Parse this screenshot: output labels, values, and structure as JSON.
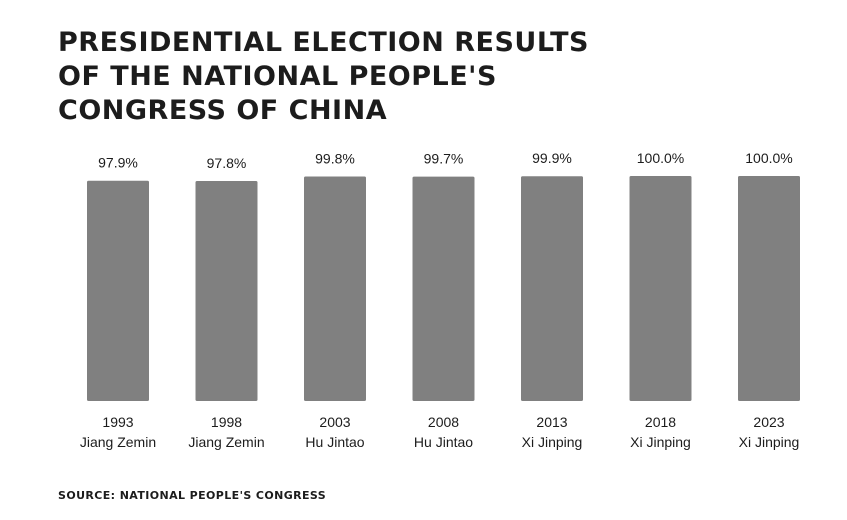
{
  "title_lines": [
    "PRESIDENTIAL ELECTION RESULTS",
    "OF THE NATIONAL PEOPLE'S",
    "CONGRESS OF CHINA"
  ],
  "source": "SOURCE: NATIONAL PEOPLE'S CONGRESS",
  "colors": {
    "bar": "#808080",
    "text": "#1c1c1c",
    "background": "#ffffff"
  },
  "chart_data": {
    "type": "bar",
    "title": "PRESIDENTIAL ELECTION RESULTS OF THE NATIONAL PEOPLE'S CONGRESS OF CHINA",
    "categories": [
      "1993",
      "1998",
      "2003",
      "2008",
      "2013",
      "2018",
      "2023"
    ],
    "category_sublabels": [
      "Jiang Zemin",
      "Jiang Zemin",
      "Hu Jintao",
      "Hu Jintao",
      "Xi Jinping",
      "Xi Jinping",
      "Xi Jinping"
    ],
    "values": [
      97.9,
      97.8,
      99.8,
      99.7,
      99.9,
      100.0,
      100.0
    ],
    "value_labels": [
      "97.9%",
      "97.8%",
      "99.8%",
      "99.7%",
      "99.9%",
      "100.0%",
      "100.0%"
    ],
    "xlabel": "",
    "ylabel": "",
    "ylim": [
      0,
      100
    ],
    "grid": false,
    "legend": "none"
  }
}
